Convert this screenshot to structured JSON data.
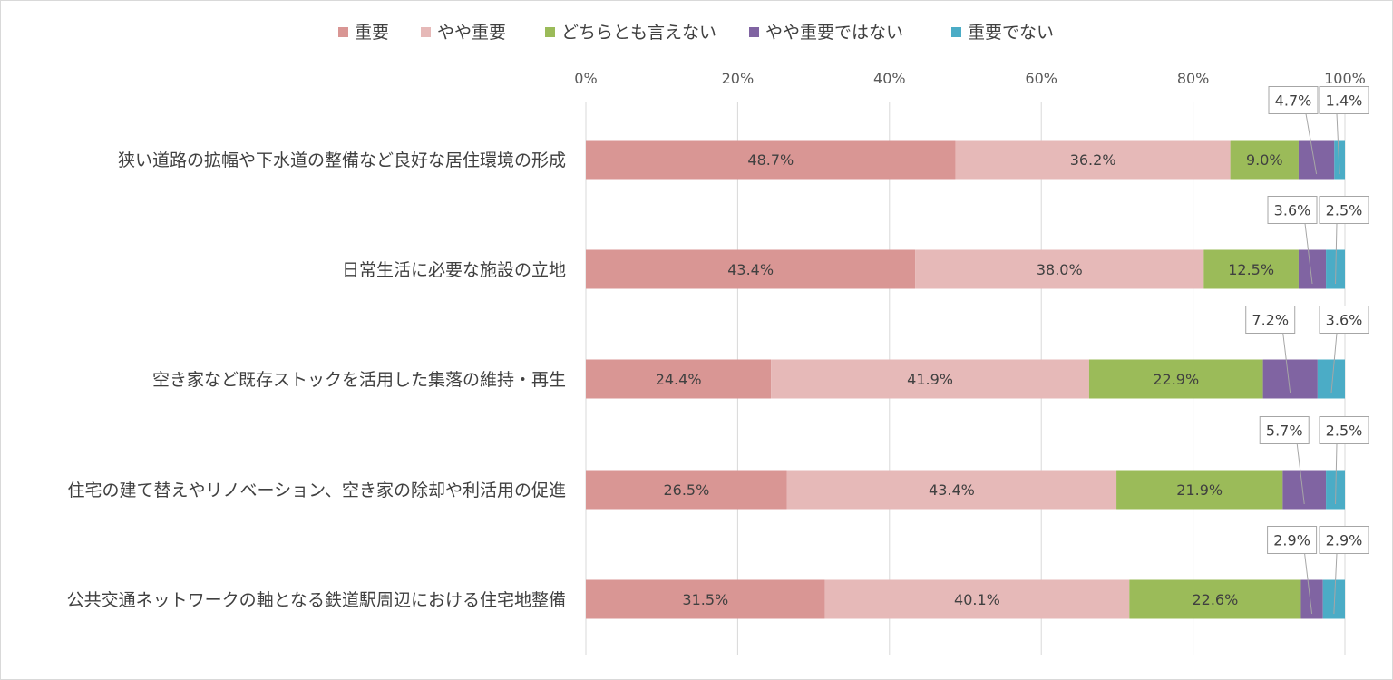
{
  "chart_data": {
    "type": "bar",
    "orientation": "horizontal",
    "stacked": "percent",
    "title": "",
    "xlabel": "",
    "ylabel": "",
    "xlim": [
      0,
      100
    ],
    "x_ticks": [
      "0%",
      "20%",
      "40%",
      "60%",
      "80%",
      "100%"
    ],
    "grid": true,
    "legend_position": "top",
    "categories": [
      "狭い道路の拡幅や下水道の整備など良好な居住環境の形成",
      "日常生活に必要な施設の立地",
      "空き家など既存ストックを活用した集落の維持・再生",
      "住宅の建て替えやリノベーション、空き家の除却や利活用の促進",
      "公共交通ネットワークの軸となる鉄道駅周辺における住宅地整備"
    ],
    "series": [
      {
        "name": "重要",
        "color": "#d99694",
        "values": [
          48.7,
          43.4,
          24.4,
          26.5,
          31.5
        ],
        "labels": [
          "48.7%",
          "43.4%",
          "24.4%",
          "26.5%",
          "31.5%"
        ]
      },
      {
        "name": "やや重要",
        "color": "#e6b9b8",
        "values": [
          36.2,
          38.0,
          41.9,
          43.4,
          40.1
        ],
        "labels": [
          "36.2%",
          "38.0%",
          "41.9%",
          "43.4%",
          "40.1%"
        ]
      },
      {
        "name": "どちらとも言えない",
        "color": "#9bbb59",
        "values": [
          9.0,
          12.5,
          22.9,
          21.9,
          22.6
        ],
        "labels": [
          "9.0%",
          "12.5%",
          "22.9%",
          "21.9%",
          "22.6%"
        ]
      },
      {
        "name": "やや重要ではない",
        "color": "#8064a2",
        "values": [
          4.7,
          3.6,
          7.2,
          5.7,
          2.9
        ],
        "labels": [
          "4.7%",
          "3.6%",
          "7.2%",
          "5.7%",
          "2.9%"
        ]
      },
      {
        "name": "重要でない",
        "color": "#4bacc6",
        "values": [
          1.4,
          2.5,
          3.6,
          2.5,
          2.9
        ],
        "labels": [
          "1.4%",
          "2.5%",
          "3.6%",
          "2.5%",
          "2.9%"
        ]
      }
    ]
  }
}
